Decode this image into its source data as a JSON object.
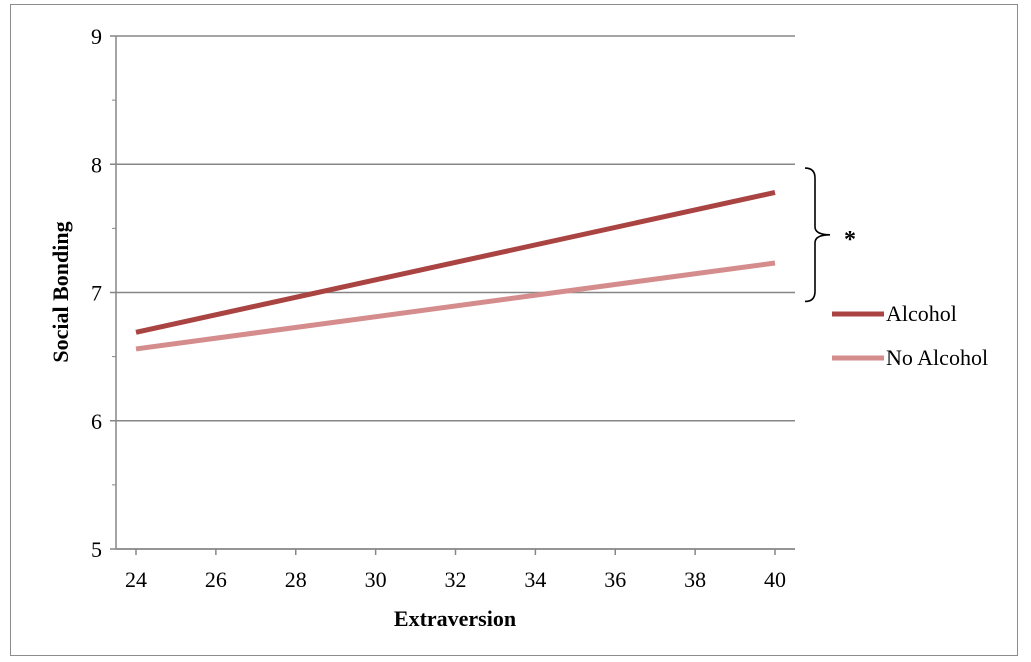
{
  "chart_data": {
    "type": "line",
    "title": "",
    "xlabel": "Extraversion",
    "ylabel": "Social Bonding",
    "xlim": [
      24,
      40
    ],
    "ylim": [
      5,
      9
    ],
    "x_ticks": [
      24,
      26,
      28,
      30,
      32,
      34,
      36,
      38,
      40
    ],
    "y_ticks": [
      5,
      6,
      7,
      8,
      9
    ],
    "grid": "horizontal",
    "legend_position": "right",
    "series": [
      {
        "name": "Alcohol",
        "color": "#a94442",
        "x": [
          24,
          40
        ],
        "y": [
          6.69,
          7.78
        ]
      },
      {
        "name": "No Alcohol",
        "color": "#d48c8c",
        "x": [
          24,
          40
        ],
        "y": [
          6.56,
          7.23
        ]
      }
    ],
    "annotations": [
      {
        "text": "*",
        "type": "brace",
        "y_range": [
          6.93,
          7.97
        ]
      }
    ]
  }
}
